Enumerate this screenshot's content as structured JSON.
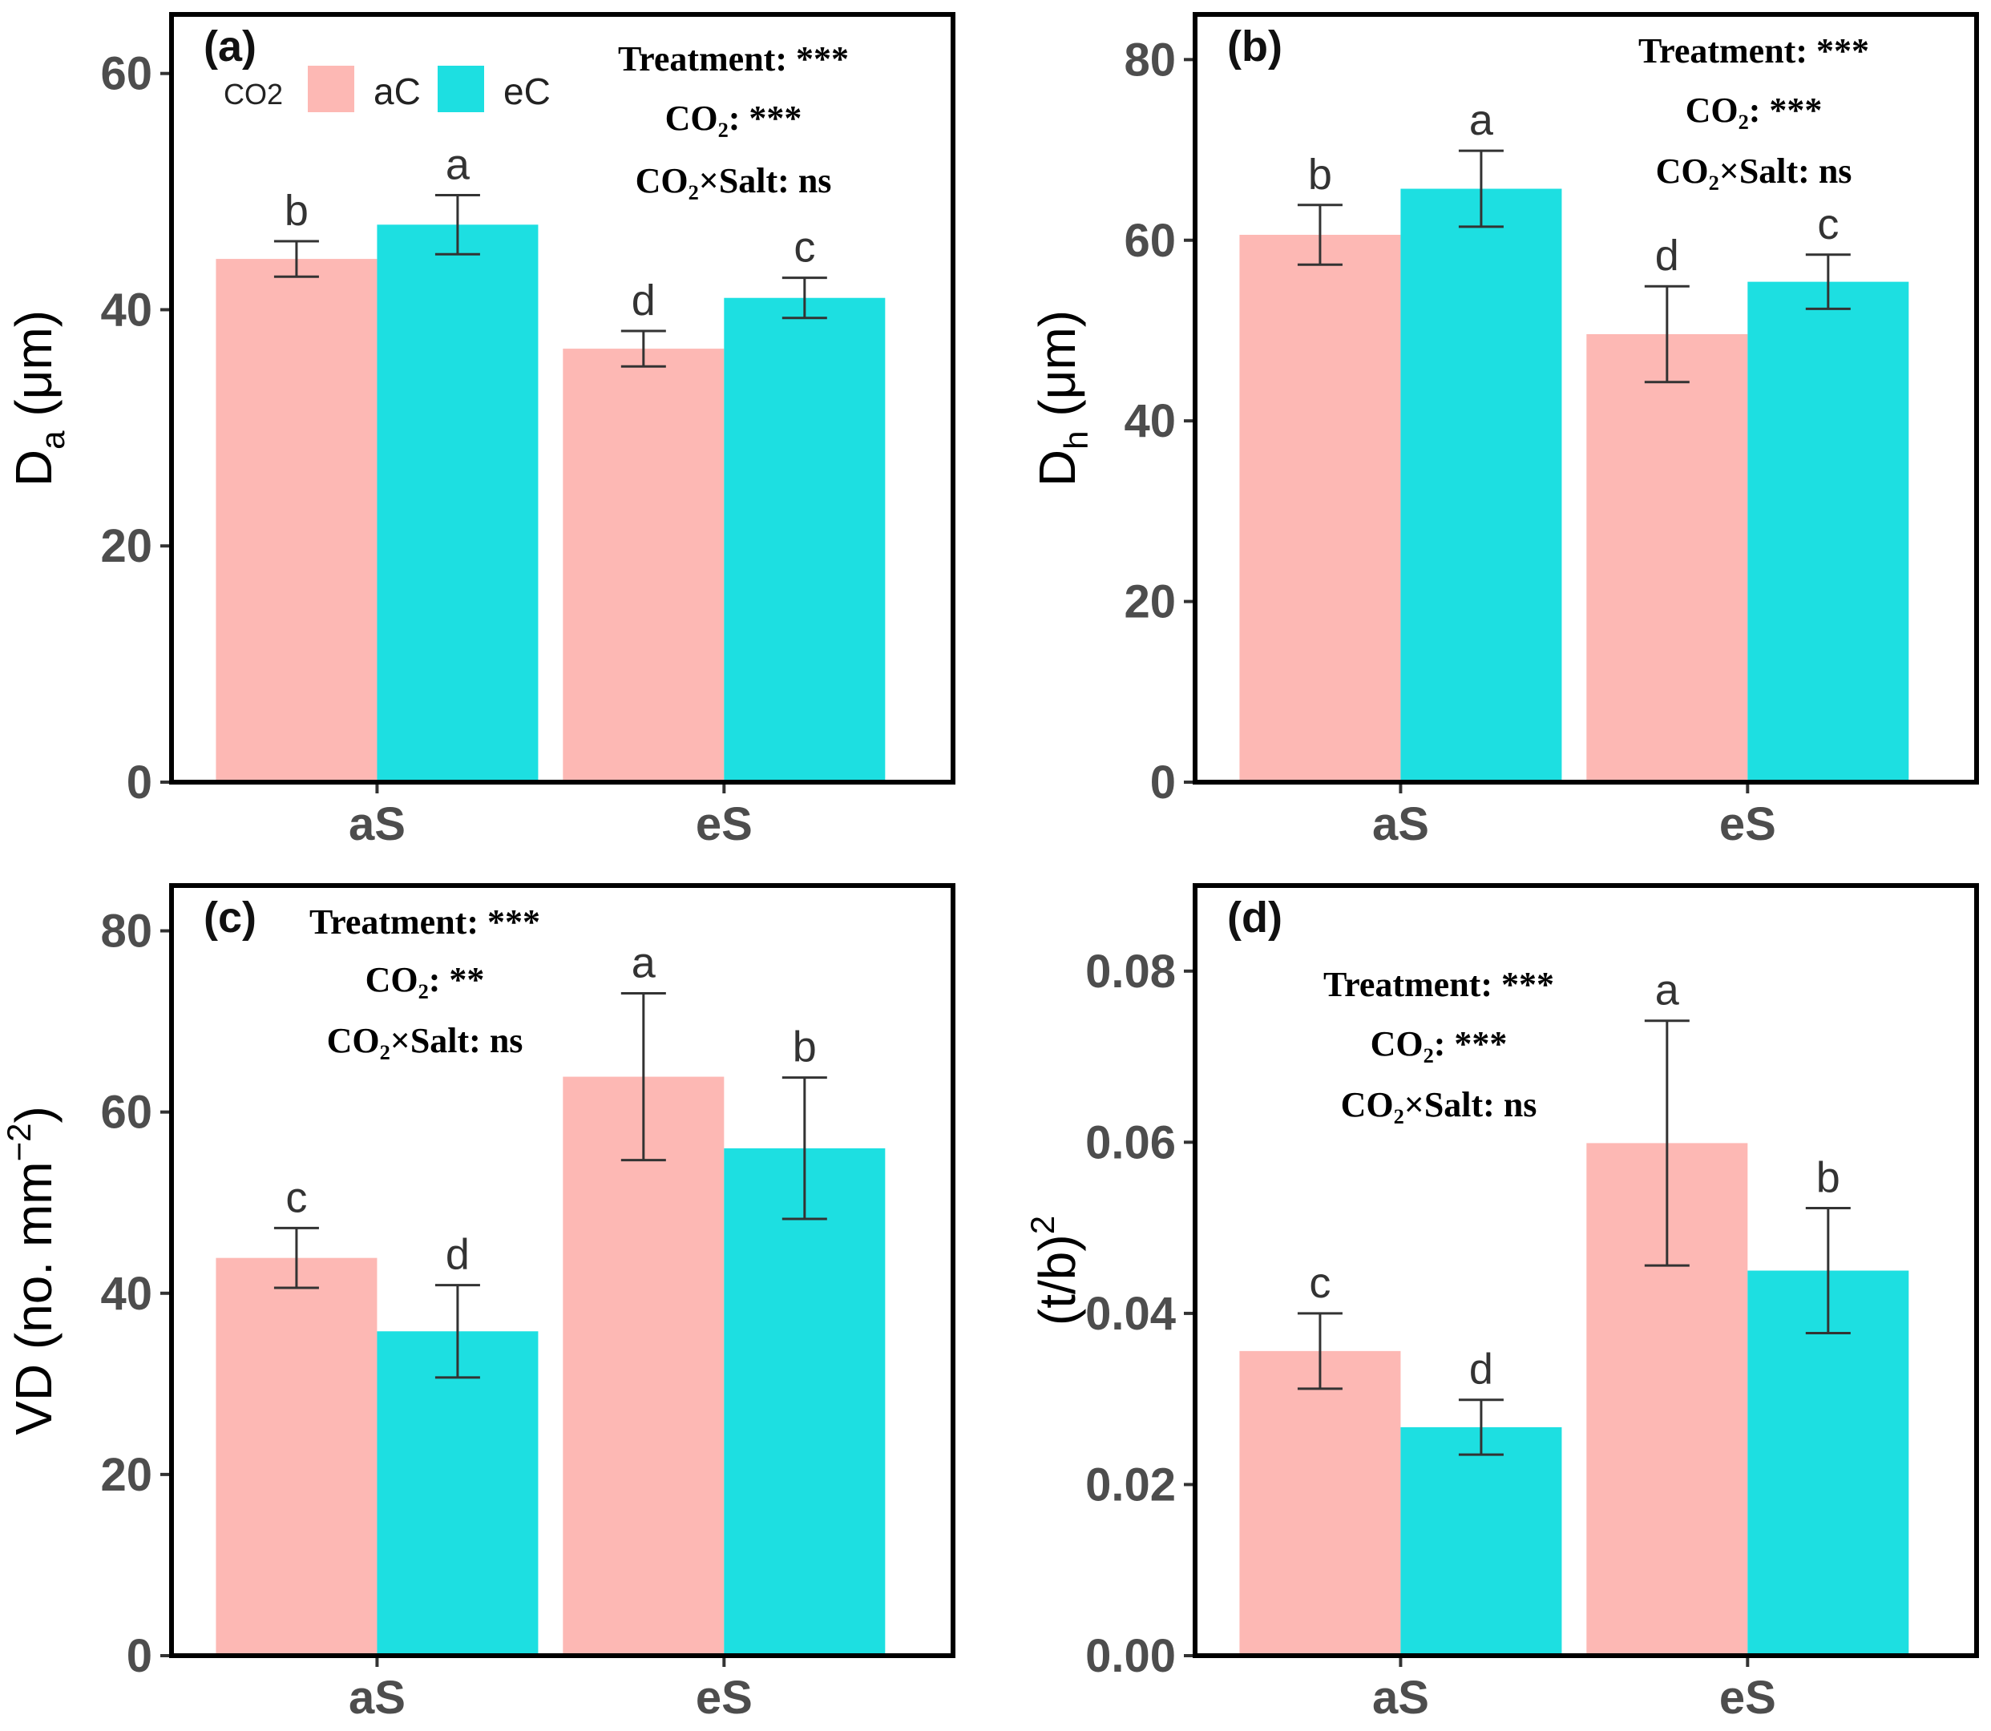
{
  "colors": {
    "aC": "#fdb8b4",
    "eC": "#1ddfe1",
    "frame": "#000000",
    "tick": "#4d4d4d",
    "errorbar": "#333333"
  },
  "legend": {
    "title": "CO2",
    "items": [
      {
        "key": "aC",
        "label": "aC"
      },
      {
        "key": "eC",
        "label": "eC"
      }
    ]
  },
  "chart_data": [
    {
      "type": "bar",
      "panel": "(a)",
      "ylabel_main": "D",
      "ylabel_sub": "a",
      "ylabel_rest": " (μm)",
      "xlabel": "",
      "categories": [
        "aS",
        "eS"
      ],
      "ylim": [
        0,
        65
      ],
      "yticks": [
        0,
        20,
        40,
        60
      ],
      "ytick_labels": [
        "0",
        "20",
        "40",
        "60"
      ],
      "series": [
        {
          "name": "aC",
          "values": [
            44.3,
            36.7
          ],
          "errors": [
            1.5,
            1.5
          ],
          "letters": [
            "b",
            "d"
          ]
        },
        {
          "name": "eC",
          "values": [
            47.2,
            41.0
          ],
          "errors": [
            2.5,
            1.7
          ],
          "letters": [
            "a",
            "c"
          ]
        }
      ],
      "stats": [
        "Treatment: ***",
        "CO₂: ***",
        "CO₂×Salt: ns"
      ],
      "show_legend": true
    },
    {
      "type": "bar",
      "panel": "(b)",
      "ylabel_main": "D",
      "ylabel_sub": "h",
      "ylabel_rest": " (μm)",
      "xlabel": "",
      "categories": [
        "aS",
        "eS"
      ],
      "ylim": [
        0,
        85
      ],
      "yticks": [
        0,
        20,
        40,
        60,
        80
      ],
      "ytick_labels": [
        "0",
        "20",
        "40",
        "60",
        "80"
      ],
      "series": [
        {
          "name": "aC",
          "values": [
            60.6,
            49.6
          ],
          "errors": [
            3.3,
            5.3
          ],
          "letters": [
            "b",
            "d"
          ]
        },
        {
          "name": "eC",
          "values": [
            65.7,
            55.4
          ],
          "errors": [
            4.2,
            3.0
          ],
          "letters": [
            "a",
            "c"
          ]
        }
      ],
      "stats": [
        "Treatment: ***",
        "CO₂: ***",
        "CO₂×Salt: ns"
      ],
      "show_legend": false
    },
    {
      "type": "bar",
      "panel": "(c)",
      "ylabel_main": "VD (no. mm",
      "ylabel_sup": "−2",
      "ylabel_rest": ")",
      "xlabel": "",
      "categories": [
        "aS",
        "eS"
      ],
      "ylim": [
        0,
        85
      ],
      "yticks": [
        0,
        20,
        40,
        60,
        80
      ],
      "ytick_labels": [
        "0",
        "20",
        "40",
        "60",
        "80"
      ],
      "series": [
        {
          "name": "aC",
          "values": [
            43.9,
            63.9
          ],
          "errors": [
            3.3,
            9.2
          ],
          "letters": [
            "c",
            "a"
          ]
        },
        {
          "name": "eC",
          "values": [
            35.8,
            56.0
          ],
          "errors": [
            5.1,
            7.8
          ],
          "letters": [
            "d",
            "b"
          ]
        }
      ],
      "stats": [
        "Treatment: ***",
        "CO₂: **",
        "CO₂×Salt: ns"
      ],
      "show_legend": false
    },
    {
      "type": "bar",
      "panel": "(d)",
      "ylabel_main": "(t/b)",
      "ylabel_sup": "2",
      "ylabel_rest": "",
      "xlabel": "",
      "categories": [
        "aS",
        "eS"
      ],
      "ylim": [
        0,
        0.09
      ],
      "yticks": [
        0,
        0.02,
        0.04,
        0.06,
        0.08
      ],
      "ytick_labels": [
        "0.00",
        "0.02",
        "0.04",
        "0.06",
        "0.08"
      ],
      "series": [
        {
          "name": "aC",
          "values": [
            0.0356,
            0.0599
          ],
          "errors": [
            0.0044,
            0.0143
          ],
          "letters": [
            "c",
            "a"
          ]
        },
        {
          "name": "eC",
          "values": [
            0.0267,
            0.045
          ],
          "errors": [
            0.0032,
            0.0073
          ],
          "letters": [
            "d",
            "b"
          ]
        }
      ],
      "stats": [
        "Treatment: ***",
        "CO₂: ***",
        "CO₂×Salt: ns"
      ],
      "show_legend": false
    }
  ]
}
